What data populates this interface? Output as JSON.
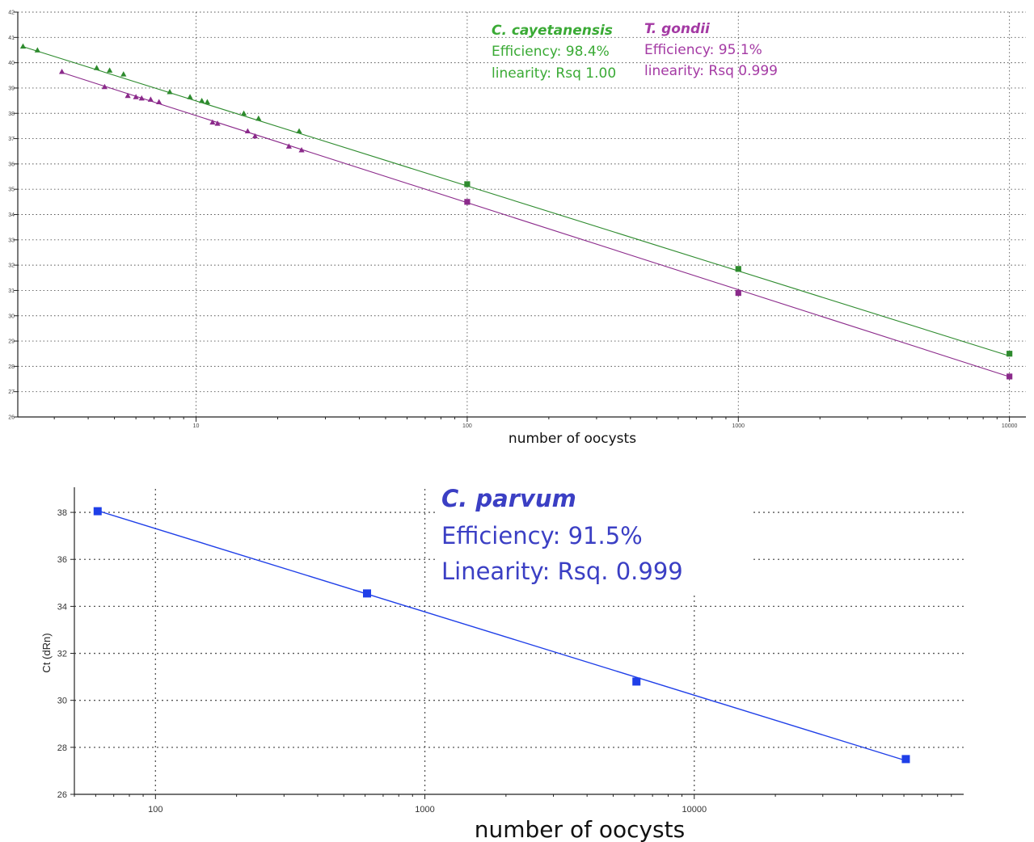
{
  "chart_data": [
    {
      "type": "scatter",
      "xlabel": "number of oocysts",
      "ylabel": "",
      "xscale": "log",
      "xlim": [
        2.2,
        11500
      ],
      "ylim": [
        26,
        42
      ],
      "grid": true,
      "x_ticks": [
        10,
        100,
        1000,
        10000
      ],
      "x_tick_labels": [
        "10",
        "100",
        "1000",
        "10000"
      ],
      "y_ticks": [
        26,
        27,
        28,
        29,
        30,
        31,
        32,
        33,
        34,
        35,
        36,
        37,
        38,
        39,
        40,
        41,
        42
      ],
      "y_tick_labels": [
        "26",
        "27",
        "28",
        "29",
        "30",
        "31",
        "32",
        "33",
        "34",
        "35",
        "36",
        "37",
        "38",
        "39",
        "40",
        "41",
        "42"
      ],
      "series": [
        {
          "name": "C. cayetanensis",
          "color": "#2e8b2e",
          "fit": {
            "slope": -3.36,
            "intercept": 41.85
          },
          "x": [
            2.3,
            2.6,
            4.3,
            4.8,
            5.4,
            8.0,
            9.5,
            10.5,
            11.0,
            15.0,
            17.0,
            24.0,
            100,
            1000,
            10000
          ],
          "y": [
            40.65,
            40.5,
            39.8,
            39.7,
            39.55,
            38.85,
            38.65,
            38.5,
            38.45,
            38.0,
            37.8,
            37.3,
            35.2,
            31.85,
            28.5
          ],
          "markers": [
            "triangle",
            "triangle",
            "triangle",
            "triangle",
            "triangle",
            "triangle",
            "triangle",
            "triangle",
            "triangle",
            "triangle",
            "triangle",
            "triangle",
            "square",
            "square",
            "square"
          ]
        },
        {
          "name": "T. gondii",
          "color": "#8b2a8b",
          "fit": {
            "slope": -3.44,
            "intercept": 41.35
          },
          "x": [
            3.2,
            4.6,
            5.6,
            6.0,
            6.3,
            6.8,
            7.3,
            11.5,
            12.0,
            15.5,
            16.5,
            22.0,
            24.5,
            100,
            1000,
            10000
          ],
          "y": [
            39.65,
            39.05,
            38.7,
            38.65,
            38.6,
            38.55,
            38.45,
            37.65,
            37.6,
            37.3,
            37.1,
            36.7,
            36.55,
            34.5,
            30.9,
            27.6
          ],
          "markers": [
            "triangle",
            "triangle",
            "triangle",
            "triangle",
            "triangle",
            "triangle",
            "triangle",
            "triangle",
            "triangle",
            "triangle",
            "triangle",
            "triangle",
            "triangle",
            "square",
            "square",
            "square"
          ]
        }
      ],
      "annotations": [
        {
          "title": "C. cayetanensis",
          "efficiency": "Efficiency: 98.4%",
          "linearity": "linearity: Rsq 1.00",
          "color": "#3aaa35"
        },
        {
          "title": "T. gondii",
          "efficiency": "Efficiency: 95.1%",
          "linearity": "linearity: Rsq 0.999",
          "color": "#a43aa4"
        }
      ]
    },
    {
      "type": "scatter",
      "xlabel": "number of oocysts",
      "ylabel": "Ct (dRn)",
      "xscale": "log",
      "xlim": [
        50,
        100000
      ],
      "ylim": [
        26,
        39
      ],
      "grid": true,
      "x_ticks": [
        100,
        1000,
        10000
      ],
      "x_tick_labels": [
        "100",
        "1000",
        "10000"
      ],
      "y_ticks": [
        26,
        28,
        30,
        32,
        34,
        36,
        38
      ],
      "y_tick_labels": [
        "26",
        "28",
        "30",
        "32",
        "34",
        "36",
        "38"
      ],
      "series": [
        {
          "name": "C. parvum",
          "color": "#1f3fe8",
          "fit": {
            "slope": -3.545,
            "intercept": 44.4
          },
          "x": [
            61,
            610,
            6100,
            61000
          ],
          "y": [
            38.05,
            34.55,
            30.8,
            27.5
          ],
          "markers": [
            "square",
            "square",
            "square",
            "square"
          ]
        }
      ],
      "annotations": [
        {
          "title": "C. parvum",
          "efficiency": "Efficiency: 91.5%",
          "linearity": "Linearity: Rsq. 0.999",
          "color": "#3b3fc4"
        }
      ]
    }
  ]
}
